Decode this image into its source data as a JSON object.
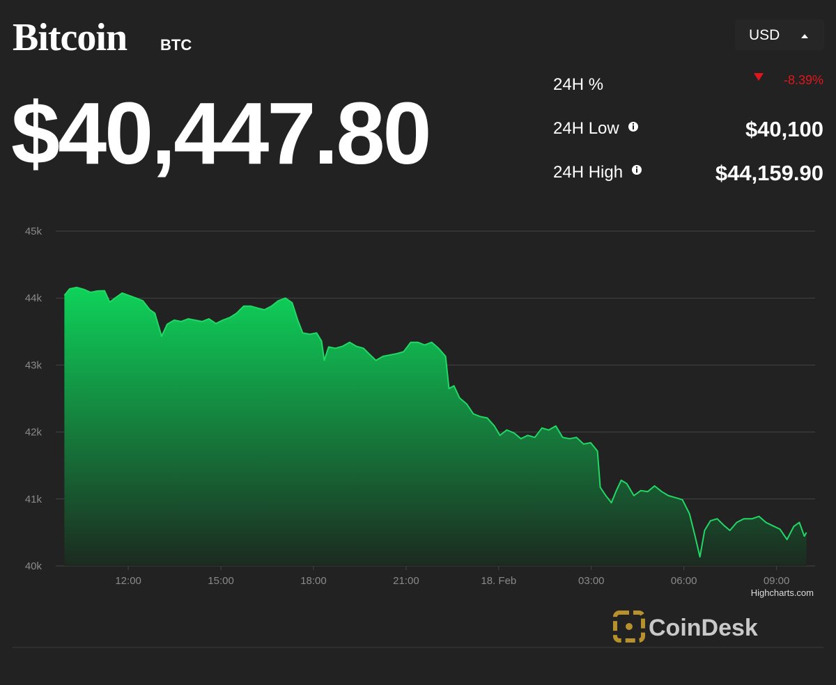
{
  "header": {
    "title": "Bitcoin",
    "symbol": "BTC",
    "price": "$40,447.80",
    "currency": "USD"
  },
  "stats": [
    {
      "label": "24H %",
      "value": "-8.39%"
    },
    {
      "label": "24H Low",
      "value": "$40,100"
    },
    {
      "label": "24H High",
      "value": "$44,159.90"
    }
  ],
  "chart_data": {
    "type": "area",
    "color": "#22d865",
    "grid": true,
    "credit": "Highcharts.com",
    "xlim": [
      9.65,
      34.25
    ],
    "ylim": [
      40000,
      45000
    ],
    "yticks": [
      {
        "value": 40000,
        "label": "40k"
      },
      {
        "value": 41000,
        "label": "41k"
      },
      {
        "value": 42000,
        "label": "42k"
      },
      {
        "value": 43000,
        "label": "43k"
      },
      {
        "value": 44000,
        "label": "44k"
      },
      {
        "value": 45000,
        "label": "45k"
      }
    ],
    "xticks": [
      {
        "value": 12,
        "label": "12:00"
      },
      {
        "value": 15,
        "label": "15:00"
      },
      {
        "value": 18,
        "label": "18:00"
      },
      {
        "value": 21,
        "label": "21:00"
      },
      {
        "value": 24,
        "label": "18. Feb"
      },
      {
        "value": 27,
        "label": "03:00"
      },
      {
        "value": 30,
        "label": "06:00"
      },
      {
        "value": 33,
        "label": "09:00"
      }
    ],
    "x": [
      9.93,
      10.1,
      10.33,
      10.56,
      10.78,
      11.0,
      11.23,
      11.4,
      11.57,
      11.8,
      12.02,
      12.25,
      12.47,
      12.7,
      12.86,
      13.08,
      13.26,
      13.49,
      13.71,
      13.94,
      14.16,
      14.39,
      14.61,
      14.84,
      15.06,
      15.29,
      15.51,
      15.74,
      15.96,
      16.19,
      16.41,
      16.64,
      16.86,
      17.09,
      17.31,
      17.49,
      17.65,
      17.88,
      18.1,
      18.26,
      18.35,
      18.49,
      18.71,
      18.94,
      19.17,
      19.39,
      19.62,
      19.84,
      20.02,
      20.25,
      20.47,
      20.7,
      20.92,
      21.15,
      21.38,
      21.6,
      21.83,
      22.05,
      22.28,
      22.39,
      22.55,
      22.73,
      22.96,
      23.18,
      23.41,
      23.63,
      23.86,
      24.04,
      24.26,
      24.5,
      24.72,
      24.94,
      25.17,
      25.4,
      25.62,
      25.85,
      26.07,
      26.3,
      26.52,
      26.75,
      26.98,
      27.2,
      27.29,
      27.47,
      27.65,
      27.81,
      27.97,
      28.15,
      28.38,
      28.6,
      28.83,
      29.05,
      29.28,
      29.5,
      29.73,
      29.95,
      30.18,
      30.36,
      30.52,
      30.67,
      30.86,
      31.08,
      31.31,
      31.49,
      31.71,
      31.94,
      32.21,
      32.43,
      32.66,
      32.88,
      33.11,
      33.34,
      33.56,
      33.74,
      33.9,
      33.97
    ],
    "values": [
      44040,
      44137,
      44160,
      44130,
      44085,
      44106,
      44110,
      43940,
      44000,
      44075,
      44040,
      44000,
      43960,
      43825,
      43775,
      43430,
      43610,
      43670,
      43650,
      43690,
      43670,
      43650,
      43690,
      43620,
      43670,
      43710,
      43775,
      43880,
      43880,
      43850,
      43825,
      43880,
      43960,
      44000,
      43930,
      43670,
      43480,
      43460,
      43480,
      43360,
      43070,
      43270,
      43250,
      43280,
      43340,
      43280,
      43250,
      43150,
      43070,
      43130,
      43150,
      43170,
      43200,
      43340,
      43340,
      43300,
      43340,
      43250,
      43130,
      42650,
      42690,
      42510,
      42420,
      42270,
      42230,
      42210,
      42090,
      41950,
      42030,
      41985,
      41900,
      41950,
      41920,
      42060,
      42030,
      42090,
      41920,
      41900,
      41920,
      41820,
      41840,
      41715,
      41175,
      41050,
      40945,
      41125,
      41280,
      41230,
      41050,
      41125,
      41110,
      41195,
      41110,
      41050,
      41020,
      40990,
      40780,
      40450,
      40135,
      40530,
      40675,
      40705,
      40600,
      40530,
      40650,
      40705,
      40705,
      40740,
      40650,
      40600,
      40550,
      40395,
      40590,
      40650,
      40445,
      40500
    ]
  },
  "footer": {
    "logo": "CoinDesk"
  }
}
